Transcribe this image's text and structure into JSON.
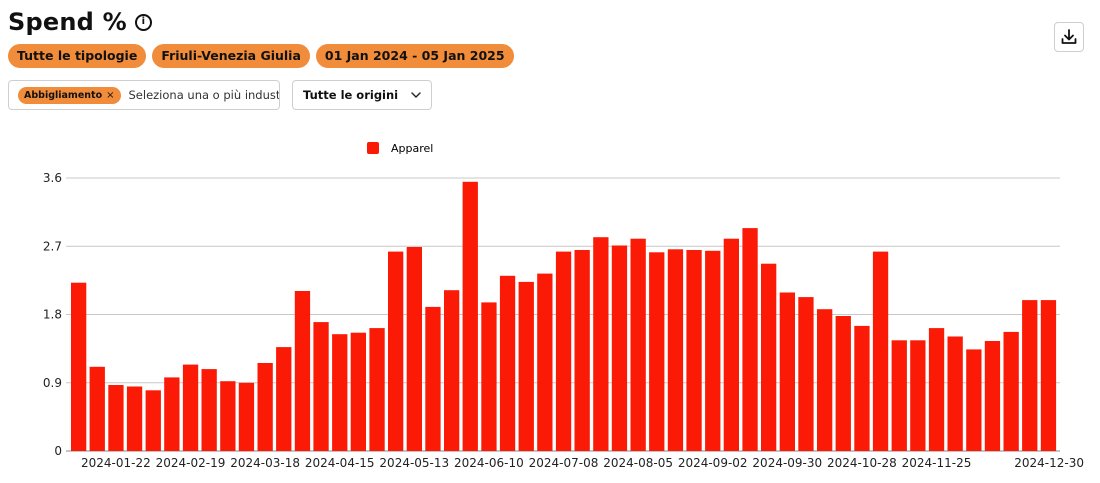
{
  "header": {
    "title": "Spend %",
    "info_icon": "info-circle-icon",
    "download_icon": "download-icon"
  },
  "filters": {
    "chips": [
      "Tutte le tipologie",
      "Friuli-Venezia Giulia",
      "01 Jan 2024 - 05 Jan 2025"
    ],
    "industry_tag": "Abbigliamento",
    "industry_tag_remove": "×",
    "industry_placeholder": "Seleziona una o più industri",
    "origin_select": "Tutte le origini",
    "origin_icon": "chevron-down-icon"
  },
  "colors": {
    "accent": "#f08c3a",
    "bar": "#fa1a06",
    "grid": "#c8c8c8"
  },
  "chart_data": {
    "type": "bar",
    "legend": {
      "position": "top",
      "entries": [
        "Apparel"
      ]
    },
    "series": [
      {
        "name": "Apparel",
        "color": "#fa1a06",
        "values": [
          2.22,
          1.11,
          0.87,
          0.85,
          0.8,
          0.97,
          1.14,
          1.08,
          0.92,
          0.9,
          1.16,
          1.37,
          2.11,
          1.7,
          1.54,
          1.56,
          1.62,
          2.63,
          2.69,
          1.9,
          2.12,
          3.55,
          1.96,
          2.31,
          2.23,
          2.34,
          2.63,
          2.65,
          2.82,
          2.71,
          2.8,
          2.62,
          2.66,
          2.65,
          2.64,
          2.8,
          2.94,
          2.47,
          2.09,
          2.03,
          1.87,
          1.78,
          1.65,
          2.63,
          1.46,
          1.46,
          1.62,
          1.51,
          1.34,
          1.45,
          1.57,
          1.99,
          1.99
        ]
      }
    ],
    "x_tick_labels": [
      "2024-01-22",
      "2024-02-19",
      "2024-03-18",
      "2024-04-15",
      "2024-05-13",
      "2024-06-10",
      "2024-07-08",
      "2024-08-05",
      "2024-09-02",
      "2024-09-30",
      "2024-10-28",
      "2024-11-25",
      "2024-12-30"
    ],
    "y_tick_labels": [
      "0",
      "0.9",
      "1.8",
      "2.7",
      "3.6"
    ],
    "ylim": [
      0,
      3.6
    ],
    "grid": true
  }
}
